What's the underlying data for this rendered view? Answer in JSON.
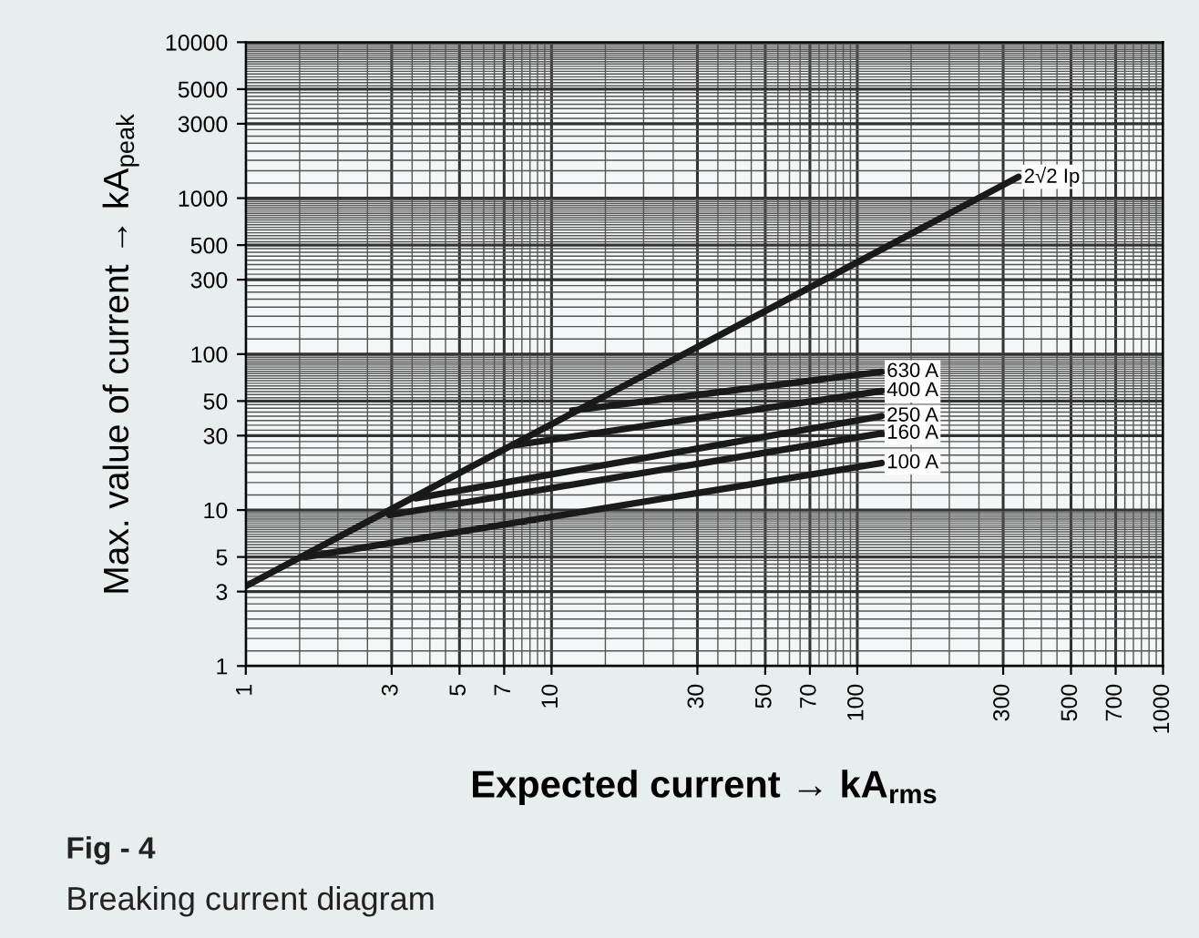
{
  "chart_data": {
    "type": "line",
    "log": "xy",
    "xlabel": "Expected current → kA$_{rms}$",
    "ylabel": "Max. value of current → kA$_{peak}$",
    "annotations": [
      "Fig - 4",
      "Breaking current diagram"
    ],
    "xlim": [
      1,
      1000
    ],
    "ylim": [
      1,
      10000
    ],
    "xticks": [
      1,
      3,
      5,
      7,
      10,
      30,
      50,
      70,
      100,
      300,
      500,
      700,
      1000
    ],
    "yticks": [
      1,
      3,
      5,
      10,
      30,
      50,
      100,
      300,
      500,
      1000,
      3000,
      5000,
      10000
    ],
    "grid": true,
    "legend": false,
    "marker": "none",
    "line_style": "solid",
    "series": [
      {
        "name": "2√2 Ip",
        "color": "#1a1a1a",
        "x": [
          1,
          337
        ],
        "values": [
          3.25,
          1370
        ]
      },
      {
        "name": "630 A",
        "color": "#1a1a1a",
        "x": [
          11.7,
          120
        ],
        "values": [
          43.5,
          77
        ]
      },
      {
        "name": "400 A",
        "color": "#1a1a1a",
        "x": [
          7.5,
          120
        ],
        "values": [
          26,
          58
        ]
      },
      {
        "name": "250 A",
        "color": "#1a1a1a",
        "x": [
          3.6,
          120
        ],
        "values": [
          11.9,
          40
        ]
      },
      {
        "name": "160 A",
        "color": "#1a1a1a",
        "x": [
          2.95,
          120
        ],
        "values": [
          9.3,
          31
        ]
      },
      {
        "name": "100 A",
        "color": "#1a1a1a",
        "x": [
          1.56,
          120
        ],
        "values": [
          5.0,
          20
        ]
      }
    ]
  }
}
